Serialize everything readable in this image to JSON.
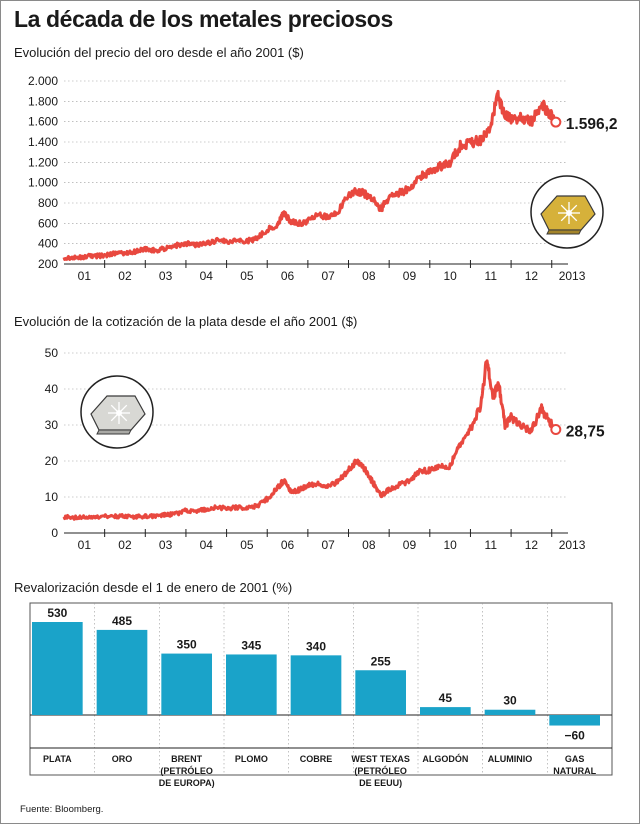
{
  "title": "La década de los metales preciosos",
  "source": "Fuente: Bloomberg.",
  "colors": {
    "line": "#e8483f",
    "bar": "#1aa3c9",
    "axis": "#222222",
    "grid": "#9a9a9a"
  },
  "chart_data": [
    {
      "type": "line",
      "title": "Evolución del precio del oro desde el año 2001 ($)",
      "x_tick_labels": [
        "01",
        "02",
        "03",
        "04",
        "05",
        "06",
        "07",
        "08",
        "09",
        "10",
        "11",
        "12",
        "2013"
      ],
      "xlim": [
        2001,
        2013.4
      ],
      "ylim": [
        200,
        2000
      ],
      "y_ticks": [
        200,
        400,
        600,
        800,
        1000,
        1200,
        1400,
        1600,
        1800,
        2000
      ],
      "y_tick_labels": [
        "200",
        "400",
        "600",
        "800",
        "1.000",
        "1.200",
        "1.400",
        "1.600",
        "1.800",
        "2.000"
      ],
      "series": [
        {
          "x": [
            2001.0,
            2001.25,
            2001.5,
            2001.75,
            2002.0,
            2002.25,
            2002.5,
            2002.75,
            2003.0,
            2003.25,
            2003.5,
            2003.75,
            2004.0,
            2004.25,
            2004.5,
            2004.75,
            2005.0,
            2005.25,
            2005.5,
            2005.75,
            2006.0,
            2006.25,
            2006.4,
            2006.6,
            2006.8,
            2007.0,
            2007.25,
            2007.5,
            2007.75,
            2008.0,
            2008.2,
            2008.4,
            2008.6,
            2008.8,
            2009.0,
            2009.25,
            2009.5,
            2009.75,
            2010.0,
            2010.25,
            2010.5,
            2010.75,
            2011.0,
            2011.25,
            2011.5,
            2011.67,
            2011.8,
            2012.0,
            2012.25,
            2012.5,
            2012.75,
            2012.9,
            2013.1
          ],
          "y": [
            265,
            260,
            270,
            280,
            280,
            310,
            305,
            320,
            350,
            330,
            355,
            380,
            405,
            390,
            400,
            430,
            425,
            430,
            425,
            450,
            540,
            590,
            700,
            610,
            600,
            620,
            680,
            660,
            720,
            880,
            920,
            890,
            830,
            740,
            860,
            900,
            940,
            1050,
            1110,
            1160,
            1200,
            1360,
            1390,
            1420,
            1550,
            1880,
            1700,
            1620,
            1640,
            1600,
            1770,
            1700,
            1596
          ]
        }
      ],
      "end_label": "1.596,2"
    },
    {
      "type": "line",
      "title": "Evolución de la cotización de la plata desde el año 2001 ($)",
      "x_tick_labels": [
        "01",
        "02",
        "03",
        "04",
        "05",
        "06",
        "07",
        "08",
        "09",
        "10",
        "11",
        "12",
        "2013"
      ],
      "xlim": [
        2001,
        2013.4
      ],
      "ylim": [
        0,
        50
      ],
      "y_ticks": [
        0,
        10,
        20,
        30,
        40,
        50
      ],
      "y_tick_labels": [
        "0",
        "10",
        "20",
        "30",
        "40",
        "50"
      ],
      "series": [
        {
          "x": [
            2001.0,
            2001.25,
            2001.5,
            2001.75,
            2002.0,
            2002.25,
            2002.5,
            2002.75,
            2003.0,
            2003.25,
            2003.5,
            2003.75,
            2004.0,
            2004.25,
            2004.5,
            2004.75,
            2005.0,
            2005.25,
            2005.5,
            2005.75,
            2006.0,
            2006.25,
            2006.4,
            2006.6,
            2006.8,
            2007.0,
            2007.25,
            2007.5,
            2007.75,
            2008.0,
            2008.2,
            2008.4,
            2008.6,
            2008.8,
            2009.0,
            2009.25,
            2009.5,
            2009.75,
            2010.0,
            2010.25,
            2010.5,
            2010.75,
            2011.0,
            2011.25,
            2011.4,
            2011.55,
            2011.7,
            2011.85,
            2012.0,
            2012.25,
            2012.5,
            2012.75,
            2012.9,
            2013.1
          ],
          "y": [
            4.5,
            4.3,
            4.4,
            4.2,
            4.6,
            4.7,
            4.6,
            4.5,
            4.7,
            4.6,
            5.0,
            5.3,
            6.3,
            6.0,
            6.5,
            7.2,
            6.8,
            7.1,
            7.0,
            7.5,
            9.5,
            12.5,
            14.5,
            11.5,
            12.0,
            13.2,
            13.8,
            12.9,
            14.5,
            17.5,
            20.0,
            17.8,
            14.0,
            10.5,
            12.0,
            13.5,
            14.5,
            17.0,
            17.5,
            18.2,
            18.5,
            25.0,
            29.0,
            35.0,
            48.0,
            38.0,
            41.0,
            30.0,
            32.0,
            30.0,
            28.5,
            34.5,
            31.5,
            28.75
          ]
        }
      ],
      "end_label": "28,75"
    },
    {
      "type": "bar",
      "title": "Revalorización desde el 1 de enero de 2001 (%)",
      "categories": [
        "PLATA",
        "ORO",
        "BRENT (PETRÓLEO DE EUROPA)",
        "PLOMO",
        "COBRE",
        "WEST TEXAS (PETRÓLEO DE EEUU)",
        "ALGODÓN",
        "ALUMINIO",
        "GAS NATURAL"
      ],
      "category_lines": [
        [
          "PLATA"
        ],
        [
          "ORO"
        ],
        [
          "BRENT",
          "(PETRÓLEO",
          "DE EUROPA)"
        ],
        [
          "PLOMO"
        ],
        [
          "COBRE"
        ],
        [
          "WEST TEXAS",
          "(PETRÓLEO",
          "DE EEUU)"
        ],
        [
          "ALGODÓN"
        ],
        [
          "ALUMINIO"
        ],
        [
          "GAS",
          "NATURAL"
        ]
      ],
      "values": [
        530,
        485,
        350,
        345,
        340,
        255,
        45,
        30,
        -60
      ],
      "value_labels": [
        "530",
        "485",
        "350",
        "345",
        "340",
        "255",
        "45",
        "30",
        "−60"
      ],
      "ylim": [
        -100,
        560
      ]
    }
  ]
}
